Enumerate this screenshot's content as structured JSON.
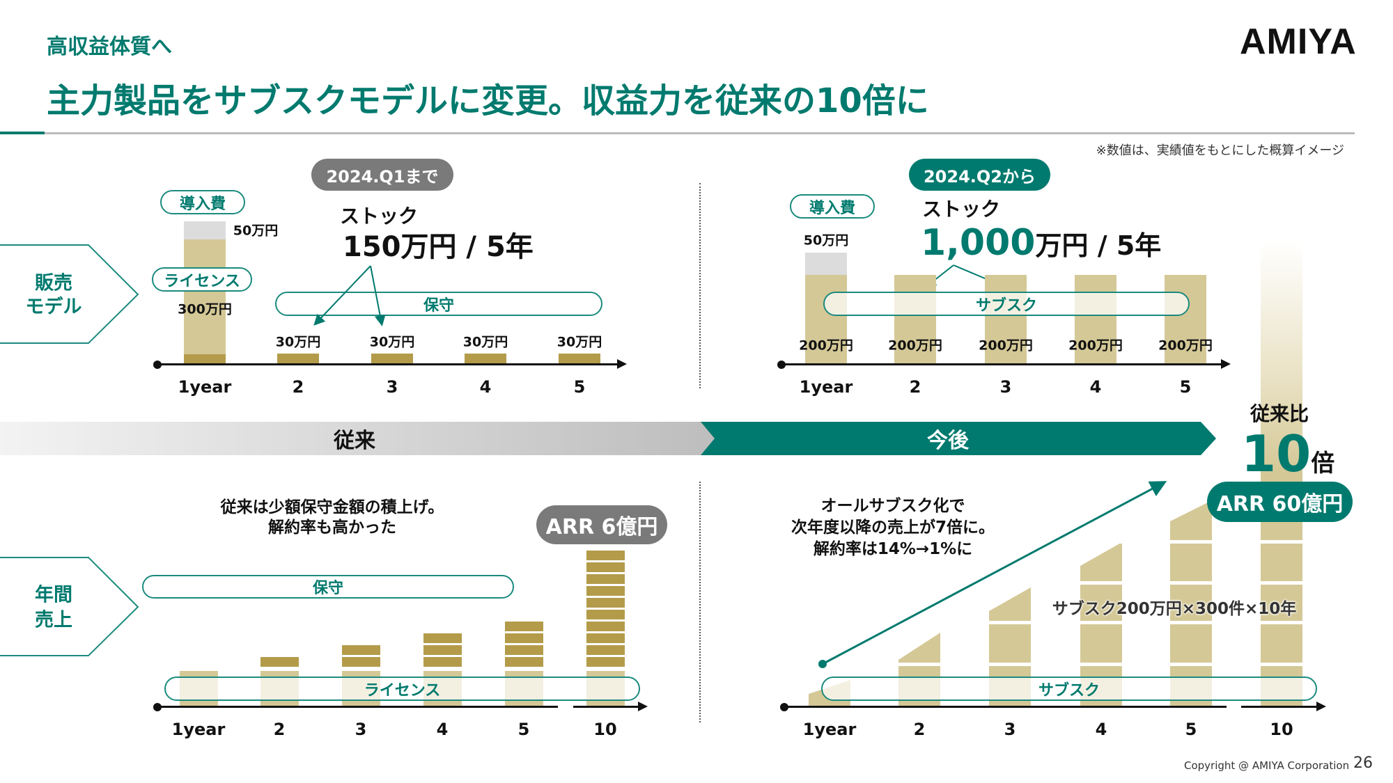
{
  "header": {
    "kicker": "高収益体質へ",
    "title": "主力製品をサブスクモデルに変更。収益力を従来の10倍に",
    "logo": "AMIYA",
    "note": "※数値は、実績値をもとにした概算イメージ"
  },
  "colors": {
    "teal": "#007a6e",
    "tan": "#d4c896",
    "olive": "#b39b4a",
    "gray_tag": "#7a7a7a"
  },
  "row_labels": {
    "sales_model": [
      "販売",
      "モデル"
    ],
    "annual_sales": [
      "年間",
      "売上"
    ]
  },
  "old_model": {
    "period": "2024.Q1まで",
    "intro_fee_label": "導入費",
    "intro_fee": "50万円",
    "license_label": "ライセンス",
    "license": "300万円",
    "maintenance_label": "保守",
    "stock_label": "ストック",
    "stock_value": "150万円 / 5年",
    "yearly": [
      "30万円",
      "30万円",
      "30万円",
      "30万円"
    ],
    "years": [
      "1year",
      "2",
      "3",
      "4",
      "5"
    ]
  },
  "new_model": {
    "period": "2024.Q2から",
    "intro_fee_label": "導入費",
    "intro_fee": "50万円",
    "subs_label": "サブスク",
    "stock_label": "ストック",
    "stock_number": "1,000",
    "stock_unit": "万円 / 5年",
    "yearly": [
      "200万円",
      "200万円",
      "200万円",
      "200万円",
      "200万円"
    ],
    "years": [
      "1year",
      "2",
      "3",
      "4",
      "5"
    ]
  },
  "band": {
    "past": "従来",
    "future": "今後",
    "ratio_label": "従来比",
    "ratio_value": "10",
    "ratio_unit": "倍"
  },
  "old_sales": {
    "text": [
      "従来は少額保守金額の積上げ。",
      "解約率も高かった"
    ],
    "arr": "ARR 6億円",
    "maintenance_label": "保守",
    "license_label": "ライセンス",
    "years": [
      "1year",
      "2",
      "3",
      "4",
      "5",
      "10"
    ],
    "maintenance_blocks": [
      0,
      1,
      2,
      3,
      4,
      10
    ]
  },
  "new_sales": {
    "text": [
      "オールサブスク化で",
      "次年度以降の売上が7倍に。",
      "解約率は14%→1%に"
    ],
    "arr": "ARR 60億円",
    "formula": "サブスク200万円×300件×10年",
    "subs_label": "サブスク",
    "years": [
      "1year",
      "2",
      "3",
      "4",
      "5",
      "10"
    ]
  },
  "footer": {
    "copyright": "Copyright @ AMIYA Corporation",
    "page": "26"
  }
}
